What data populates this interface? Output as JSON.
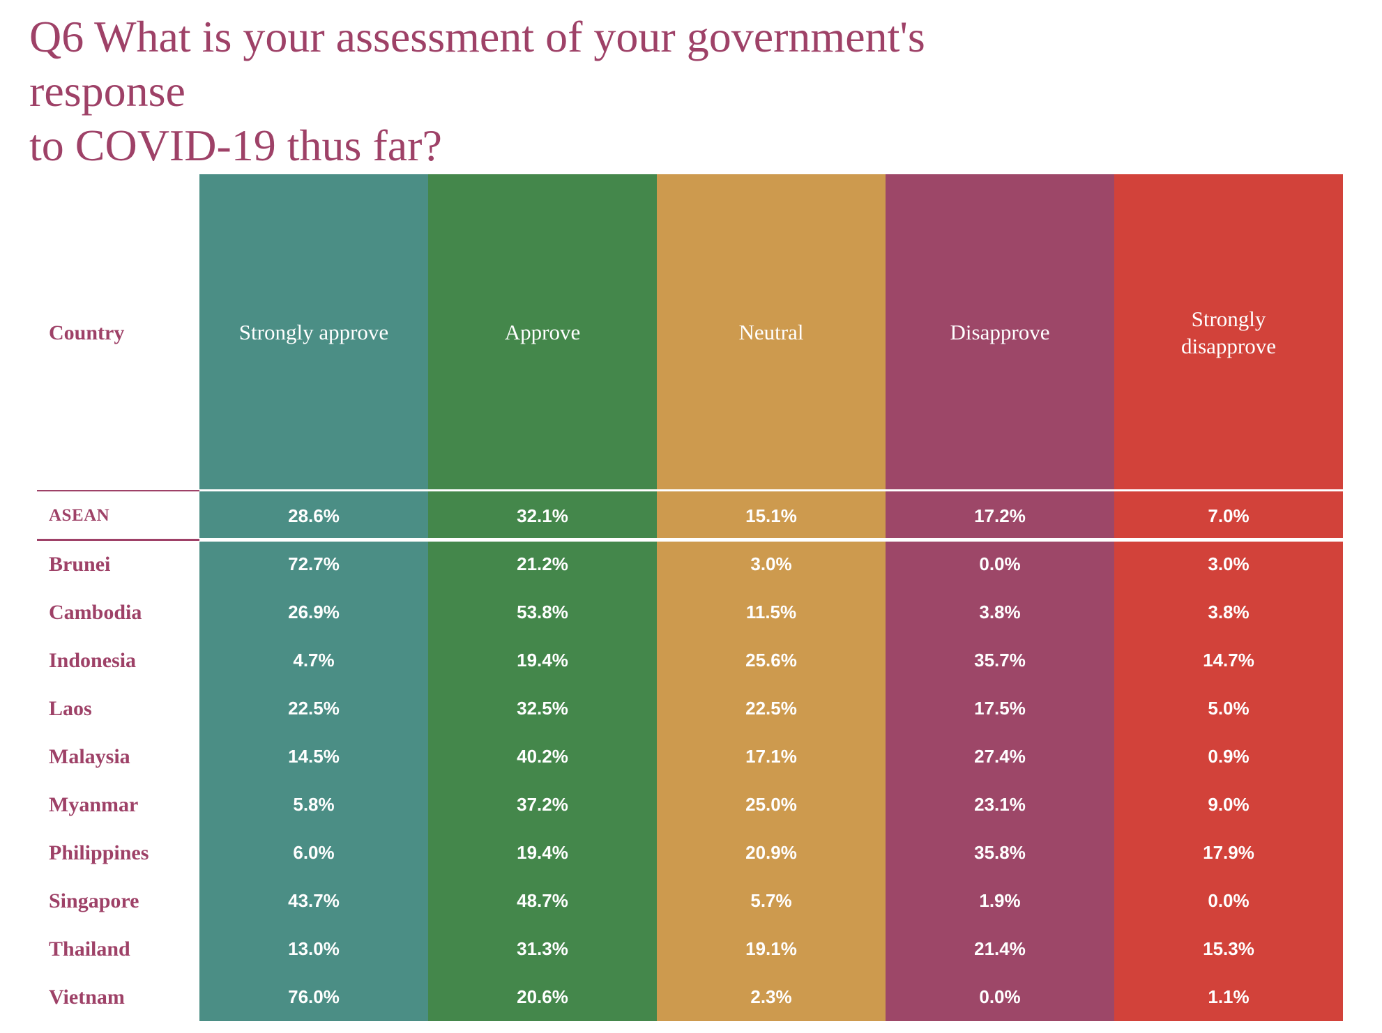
{
  "title": {
    "lines": [
      "Q6 What is your assessment of your government's response",
      "to COVID-19 thus far?"
    ]
  },
  "colors": {
    "accent": "#9E4167",
    "value_text": "#FFFFFF",
    "background": "#FFFFFF"
  },
  "table": {
    "country_header": "Country",
    "columns": [
      {
        "label": "Strongly approve",
        "color": "#4B8E85"
      },
      {
        "label": "Approve",
        "color": "#44874B"
      },
      {
        "label": "Neutral",
        "color": "#CD9A4E"
      },
      {
        "label": "Disapprove",
        "color": "#9D4768"
      },
      {
        "label": "Strongly disapprove",
        "color": "#D2423A"
      }
    ],
    "rows": [
      {
        "country": "ASEAN",
        "summary": true,
        "values": [
          "28.6%",
          "32.1%",
          "15.1%",
          "17.2%",
          "7.0%"
        ]
      },
      {
        "country": "Brunei",
        "summary": false,
        "values": [
          "72.7%",
          "21.2%",
          "3.0%",
          "0.0%",
          "3.0%"
        ]
      },
      {
        "country": "Cambodia",
        "summary": false,
        "values": [
          "26.9%",
          "53.8%",
          "11.5%",
          "3.8%",
          "3.8%"
        ]
      },
      {
        "country": "Indonesia",
        "summary": false,
        "values": [
          "4.7%",
          "19.4%",
          "25.6%",
          "35.7%",
          "14.7%"
        ]
      },
      {
        "country": "Laos",
        "summary": false,
        "values": [
          "22.5%",
          "32.5%",
          "22.5%",
          "17.5%",
          "5.0%"
        ]
      },
      {
        "country": "Malaysia",
        "summary": false,
        "values": [
          "14.5%",
          "40.2%",
          "17.1%",
          "27.4%",
          "0.9%"
        ]
      },
      {
        "country": "Myanmar",
        "summary": false,
        "values": [
          "5.8%",
          "37.2%",
          "25.0%",
          "23.1%",
          "9.0%"
        ]
      },
      {
        "country": "Philippines",
        "summary": false,
        "values": [
          "6.0%",
          "19.4%",
          "20.9%",
          "35.8%",
          "17.9%"
        ]
      },
      {
        "country": "Singapore",
        "summary": false,
        "values": [
          "43.7%",
          "48.7%",
          "5.7%",
          "1.9%",
          "0.0%"
        ]
      },
      {
        "country": "Thailand",
        "summary": false,
        "values": [
          "13.0%",
          "31.3%",
          "19.1%",
          "21.4%",
          "15.3%"
        ]
      },
      {
        "country": "Vietnam",
        "summary": false,
        "values": [
          "76.0%",
          "20.6%",
          "2.3%",
          "0.0%",
          "1.1%"
        ]
      }
    ]
  },
  "chart_data": {
    "type": "table",
    "title": "Q6 What is your assessment of your government's response to COVID-19 thus far?",
    "categories": [
      "ASEAN",
      "Brunei",
      "Cambodia",
      "Indonesia",
      "Laos",
      "Malaysia",
      "Myanmar",
      "Philippines",
      "Singapore",
      "Thailand",
      "Vietnam"
    ],
    "series": [
      {
        "name": "Strongly approve",
        "color": "#4B8E85",
        "values": [
          28.6,
          72.7,
          26.9,
          4.7,
          22.5,
          14.5,
          5.8,
          6.0,
          43.7,
          13.0,
          76.0
        ]
      },
      {
        "name": "Approve",
        "color": "#44874B",
        "values": [
          32.1,
          21.2,
          53.8,
          19.4,
          32.5,
          40.2,
          37.2,
          19.4,
          48.7,
          31.3,
          20.6
        ]
      },
      {
        "name": "Neutral",
        "color": "#CD9A4E",
        "values": [
          15.1,
          3.0,
          11.5,
          25.6,
          22.5,
          17.1,
          25.0,
          20.9,
          5.7,
          19.1,
          2.3
        ]
      },
      {
        "name": "Disapprove",
        "color": "#9D4768",
        "values": [
          17.2,
          0.0,
          3.8,
          35.7,
          17.5,
          27.4,
          23.1,
          35.8,
          1.9,
          21.4,
          0.0
        ]
      },
      {
        "name": "Strongly disapprove",
        "color": "#D2423A",
        "values": [
          7.0,
          3.0,
          3.8,
          14.7,
          5.0,
          0.9,
          9.0,
          17.9,
          0.0,
          15.3,
          1.1
        ]
      }
    ],
    "unit": "%",
    "layout": "rows are countries, columns are response options; first data row (ASEAN) is the regional summary separated by rules"
  }
}
